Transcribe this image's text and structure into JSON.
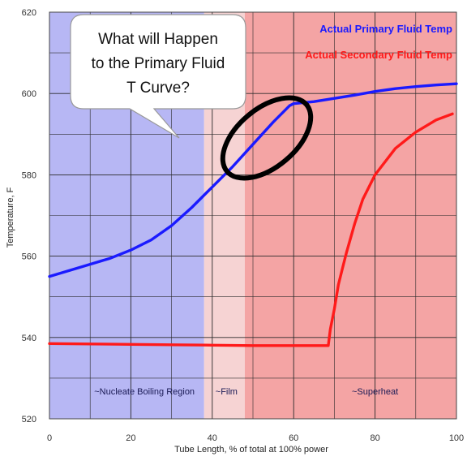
{
  "chart_data": {
    "type": "line",
    "xlabel": "Tube Length, % of total at 100% power",
    "ylabel": "Temperature, F",
    "xlim": [
      0,
      100
    ],
    "ylim": [
      520,
      620
    ],
    "x_ticks": [
      0,
      20,
      40,
      60,
      80,
      100
    ],
    "y_ticks": [
      520,
      540,
      560,
      580,
      600,
      620
    ],
    "x_tick_labels": [
      "0",
      "20",
      "40",
      "60",
      "80",
      "100"
    ],
    "y_tick_labels": [
      "520",
      "540",
      "560",
      "580",
      "600",
      "620"
    ],
    "grid": true,
    "legend_position": "top-right",
    "regions": [
      {
        "label": "~Nucleate Boiling Region",
        "x_start": 0,
        "x_end": 38,
        "color": "#b7b7f4"
      },
      {
        "label": "~Film",
        "x_start": 38,
        "x_end": 48,
        "color": "#f6d3d3"
      },
      {
        "label": "~Superheat",
        "x_start": 48,
        "x_end": 100,
        "color": "#f4a4a4"
      }
    ],
    "series": [
      {
        "name": "Actual Primary Fluid Temp",
        "color": "#1a1aff",
        "x": [
          0,
          5,
          10,
          15,
          20,
          25,
          30,
          35,
          40,
          45,
          50,
          55,
          59,
          60,
          65,
          70,
          75,
          80,
          85,
          90,
          95,
          100
        ],
        "y": [
          555,
          556.5,
          558,
          559.5,
          561.5,
          564,
          567.5,
          572,
          577,
          582,
          587.5,
          593,
          597,
          597.5,
          598,
          598.8,
          599.6,
          600.5,
          601.2,
          601.7,
          602.1,
          602.4
        ]
      },
      {
        "name": "Actual Secondary Fluid Temp",
        "color": "#ff1a1a",
        "x": [
          0,
          10,
          20,
          30,
          40,
          50,
          60,
          65,
          68.5,
          69,
          70,
          71,
          72,
          73,
          75,
          77,
          80,
          85,
          90,
          95,
          99
        ],
        "y": [
          538.5,
          538.4,
          538.3,
          538.2,
          538.1,
          538.0,
          538.0,
          538.0,
          538.0,
          542,
          547,
          553,
          557,
          561,
          568,
          574,
          580,
          586.5,
          590.5,
          593.5,
          595
        ]
      }
    ],
    "annotations": [
      {
        "text": "What will Happen\nto the Primary Fluid\nT Curve?"
      }
    ]
  },
  "callout": {
    "lines": [
      "What will Happen",
      "to the Primary Fluid",
      "T Curve?"
    ]
  }
}
